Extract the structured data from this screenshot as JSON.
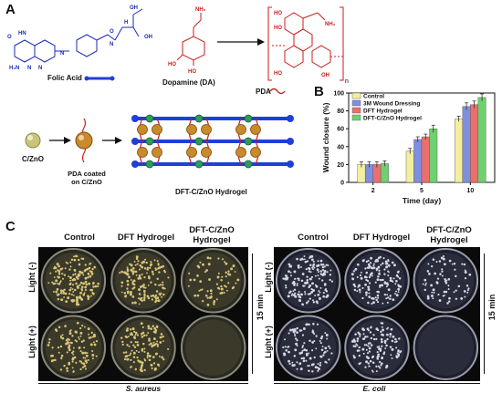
{
  "panels": {
    "a": "A",
    "b": "B",
    "c": "C"
  },
  "panel_a": {
    "folic_acid": "Folic Acid",
    "dopamine": "Dopamine (DA)",
    "pda": "PDA",
    "n_sub": "n",
    "czno": "C/ZnO",
    "pda_coated_line1": "PDA coated",
    "pda_coated_line2": "on C/ZnO",
    "hydrogel": "DFT-C/ZnO Hydrogel"
  },
  "chart_data": {
    "type": "bar",
    "xlabel": "Time (day)",
    "ylabel": "Wound closure (%)",
    "ylim": [
      0,
      100
    ],
    "yticks": [
      0,
      20,
      40,
      60,
      80,
      100
    ],
    "categories": [
      "2",
      "5",
      "10"
    ],
    "legend_position": "top-left",
    "series": [
      {
        "name": "Control",
        "color": "#f3efa0",
        "values": [
          20,
          35,
          71
        ],
        "errors": [
          3,
          3,
          3
        ]
      },
      {
        "name": "3M Wound Dressing",
        "color": "#7f8fe0",
        "values": [
          20,
          48,
          85
        ],
        "errors": [
          3,
          3,
          4
        ]
      },
      {
        "name": "DFT Hydrogel",
        "color": "#ea6f6f",
        "values": [
          20,
          51,
          87
        ],
        "errors": [
          3,
          3,
          4
        ]
      },
      {
        "name": "DFT-C/ZnO Hydrogel",
        "color": "#6fd06f",
        "values": [
          21,
          60,
          95
        ],
        "errors": [
          3,
          4,
          4
        ]
      }
    ]
  },
  "panel_c": {
    "left": {
      "columns": [
        "Control",
        "DFT Hydrogel",
        "DFT-C/ZnO\nHydrogel"
      ],
      "rows": [
        "Light (-)",
        "Light (+)"
      ],
      "time": "15 min",
      "bacteria": "S. aureus"
    },
    "right": {
      "columns": [
        "Control",
        "DFT Hydrogel",
        "DFT-C/ZnO\nHydrogel"
      ],
      "rows": [
        "Light (-)",
        "Light (+)"
      ],
      "time": "15 min",
      "bacteria": "E. coli"
    }
  },
  "colors": {
    "pda_red": "#c81e1e",
    "frame_blue": "#1f3fd6",
    "particle_gold": "#c98a2b",
    "particle_green": "#2f9a5a"
  }
}
